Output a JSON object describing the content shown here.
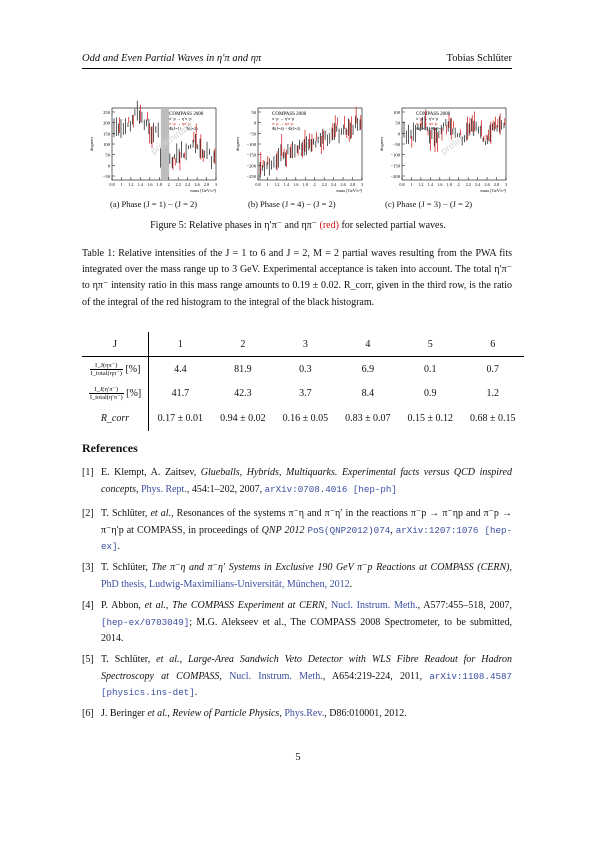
{
  "header": {
    "title": "Odd and Even Partial Waves in η′π and ηπ",
    "author": "Tobias Schlüter"
  },
  "figure": {
    "panels": [
      {
        "caption": "(a) Phase (J = 1) − (J = 2)",
        "ylabel": "degrees",
        "xlabel": "mass [GeV/c²]",
        "yticks": [
          "250",
          "200",
          "150",
          "100",
          "50",
          "0",
          "−50"
        ],
        "xticks": [
          "0.8",
          "1",
          "1.2",
          "1.4",
          "1.6",
          "1.8",
          "2",
          "2.2",
          "2.4",
          "2.6",
          "2.8",
          "3"
        ],
        "legend": [
          "COMPASS 2008",
          "π⁻p → η′π⁻p",
          "π⁻p → ηπ⁻p",
          "Φ(J=1) − Φ(J=2)"
        ],
        "watermark": "preliminary"
      },
      {
        "caption": "(b) Phase (J = 4) − (J = 2)",
        "ylabel": "degrees",
        "xlabel": "mass [GeV/c²]",
        "yticks": [
          "50",
          "0",
          "−50",
          "−100",
          "−150",
          "−200",
          "−250"
        ],
        "xticks": [
          "0.8",
          "1",
          "1.2",
          "1.4",
          "1.6",
          "1.8",
          "2",
          "2.2",
          "2.4",
          "2.6",
          "2.8",
          "3"
        ],
        "legend": [
          "COMPASS 2008",
          "π⁻p → η′π⁻p",
          "π⁻p → ηπ⁻p",
          "Φ(J=4) − Φ(J=2)"
        ],
        "watermark": "preliminary"
      },
      {
        "caption": "(c) Phase (J = 3) − (J = 2)",
        "ylabel": "degrees",
        "xlabel": "mass [GeV/c²]",
        "yticks": [
          "100",
          "50",
          "0",
          "−50",
          "−100",
          "−150",
          "−200"
        ],
        "xticks": [
          "0.8",
          "1",
          "1.2",
          "1.4",
          "1.6",
          "1.8",
          "2",
          "2.2",
          "2.4",
          "2.6",
          "2.8",
          "3"
        ],
        "legend": [
          "COMPASS 2008",
          "π⁻p → η′π⁻p",
          "π⁻p → ηπ⁻p",
          "Φ(J=3) − Φ(J=2)"
        ],
        "watermark": "preliminary"
      }
    ],
    "caption_prefix": "Figure 5: Relative phases in η′π⁻ and ηπ⁻ ",
    "caption_red": "(red)",
    "caption_suffix": " for selected partial waves.",
    "colors": {
      "black_series": "#111111",
      "red_series": "#d01010",
      "gap_band": "#bdbdbd"
    }
  },
  "table_caption": "Table 1: Relative intensities of the J = 1 to 6 and J = 2, M = 2 partial waves resulting from the PWA fits integrated over the mass range up to 3 GeV. Experimental acceptance is taken into account. The total η′π⁻ to ηπ⁻ intensity ratio in this mass range amounts to 0.19 ± 0.02. R_corr, given in the third row, is the ratio of the integral of the red histogram to the integral of the black histogram.",
  "table": {
    "header": [
      "J",
      "1",
      "2",
      "3",
      "4",
      "5",
      "6"
    ],
    "row1": {
      "num": "I_J(ηπ⁻)",
      "den": "I_total(ηπ⁻)",
      "unit": "[%]",
      "values": [
        "4.4",
        "81.9",
        "0.3",
        "6.9",
        "0.1",
        "0.7"
      ]
    },
    "row2": {
      "num": "I_J(η′π⁻)",
      "den": "I_total(η′π⁻)",
      "unit": "[%]",
      "values": [
        "41.7",
        "42.3",
        "3.7",
        "8.4",
        "0.9",
        "1.2"
      ]
    },
    "row3": {
      "label": "R_corr",
      "values": [
        "0.17 ± 0.01",
        "0.94 ± 0.02",
        "0.16 ± 0.05",
        "0.83 ± 0.07",
        "0.15 ± 0.12",
        "0.68 ± 0.15"
      ]
    }
  },
  "references": {
    "heading": "References",
    "items": [
      {
        "n": "[1]",
        "authors": "E. Klempt, A. Zaitsev, ",
        "title": "Glueballs, Hybrids, Multiquarks. Experimental facts versus QCD inspired concepts",
        "journal": "Phys. Rept.",
        "vol": ", 454:1–202, 2007",
        "arxiv": "arXiv:0708.4016 [hep-ph]"
      },
      {
        "n": "[2]",
        "text1": "T. Schlüter, ",
        "etal": "et al.",
        "text2": ", Resonances of the systems π⁻η and π⁻η′ in the reactions π⁻p → π⁻ηp and π⁻p → π⁻η′p at COMPASS, in proceedings of ",
        "conf": "QNP 2012",
        "pos": "PoS(QNP2012)074",
        "arxiv": "arXiv:1207:1076 [hep-ex]"
      },
      {
        "n": "[3]",
        "authors": "T. Schlüter, ",
        "title": "The π⁻η and π⁻η′ Systems in Exclusive 190 GeV π⁻p Reactions at COMPASS (CERN)",
        "link": "PhD thesis, Ludwig-Maximilians-Universität, München, 2012"
      },
      {
        "n": "[4]",
        "authors": "P. Abbon, ",
        "etal": "et al.",
        "title": "The COMPASS Experiment at CERN",
        "journal": "Nucl. Instrum. Meth.",
        "vol": ", A577:455–518, 2007",
        "arxiv": "[hep-ex/0703049]",
        "rest": "; M.G. Alekseev et al., The COMPASS 2008 Spectrometer, to be submitted, 2014."
      },
      {
        "n": "[5]",
        "authors": "T. Schlüter, ",
        "etal": "et al.",
        "title": "Large-Area Sandwich Veto Detector with WLS Fibre Readout for Hadron Spectroscopy at COMPASS",
        "journal": "Nucl. Instrum. Meth.",
        "vol": ", A654:219-224, 2011, ",
        "arxiv": "arXiv:1108.4587 [physics.ins-det]"
      },
      {
        "n": "[6]",
        "authors": "J. Beringer ",
        "etal": "et al.",
        "title": "Review of Particle Physics",
        "journal": "Phys.Rev.",
        "vol": ", D86:010001, 2012"
      }
    ]
  },
  "page_number": "5"
}
